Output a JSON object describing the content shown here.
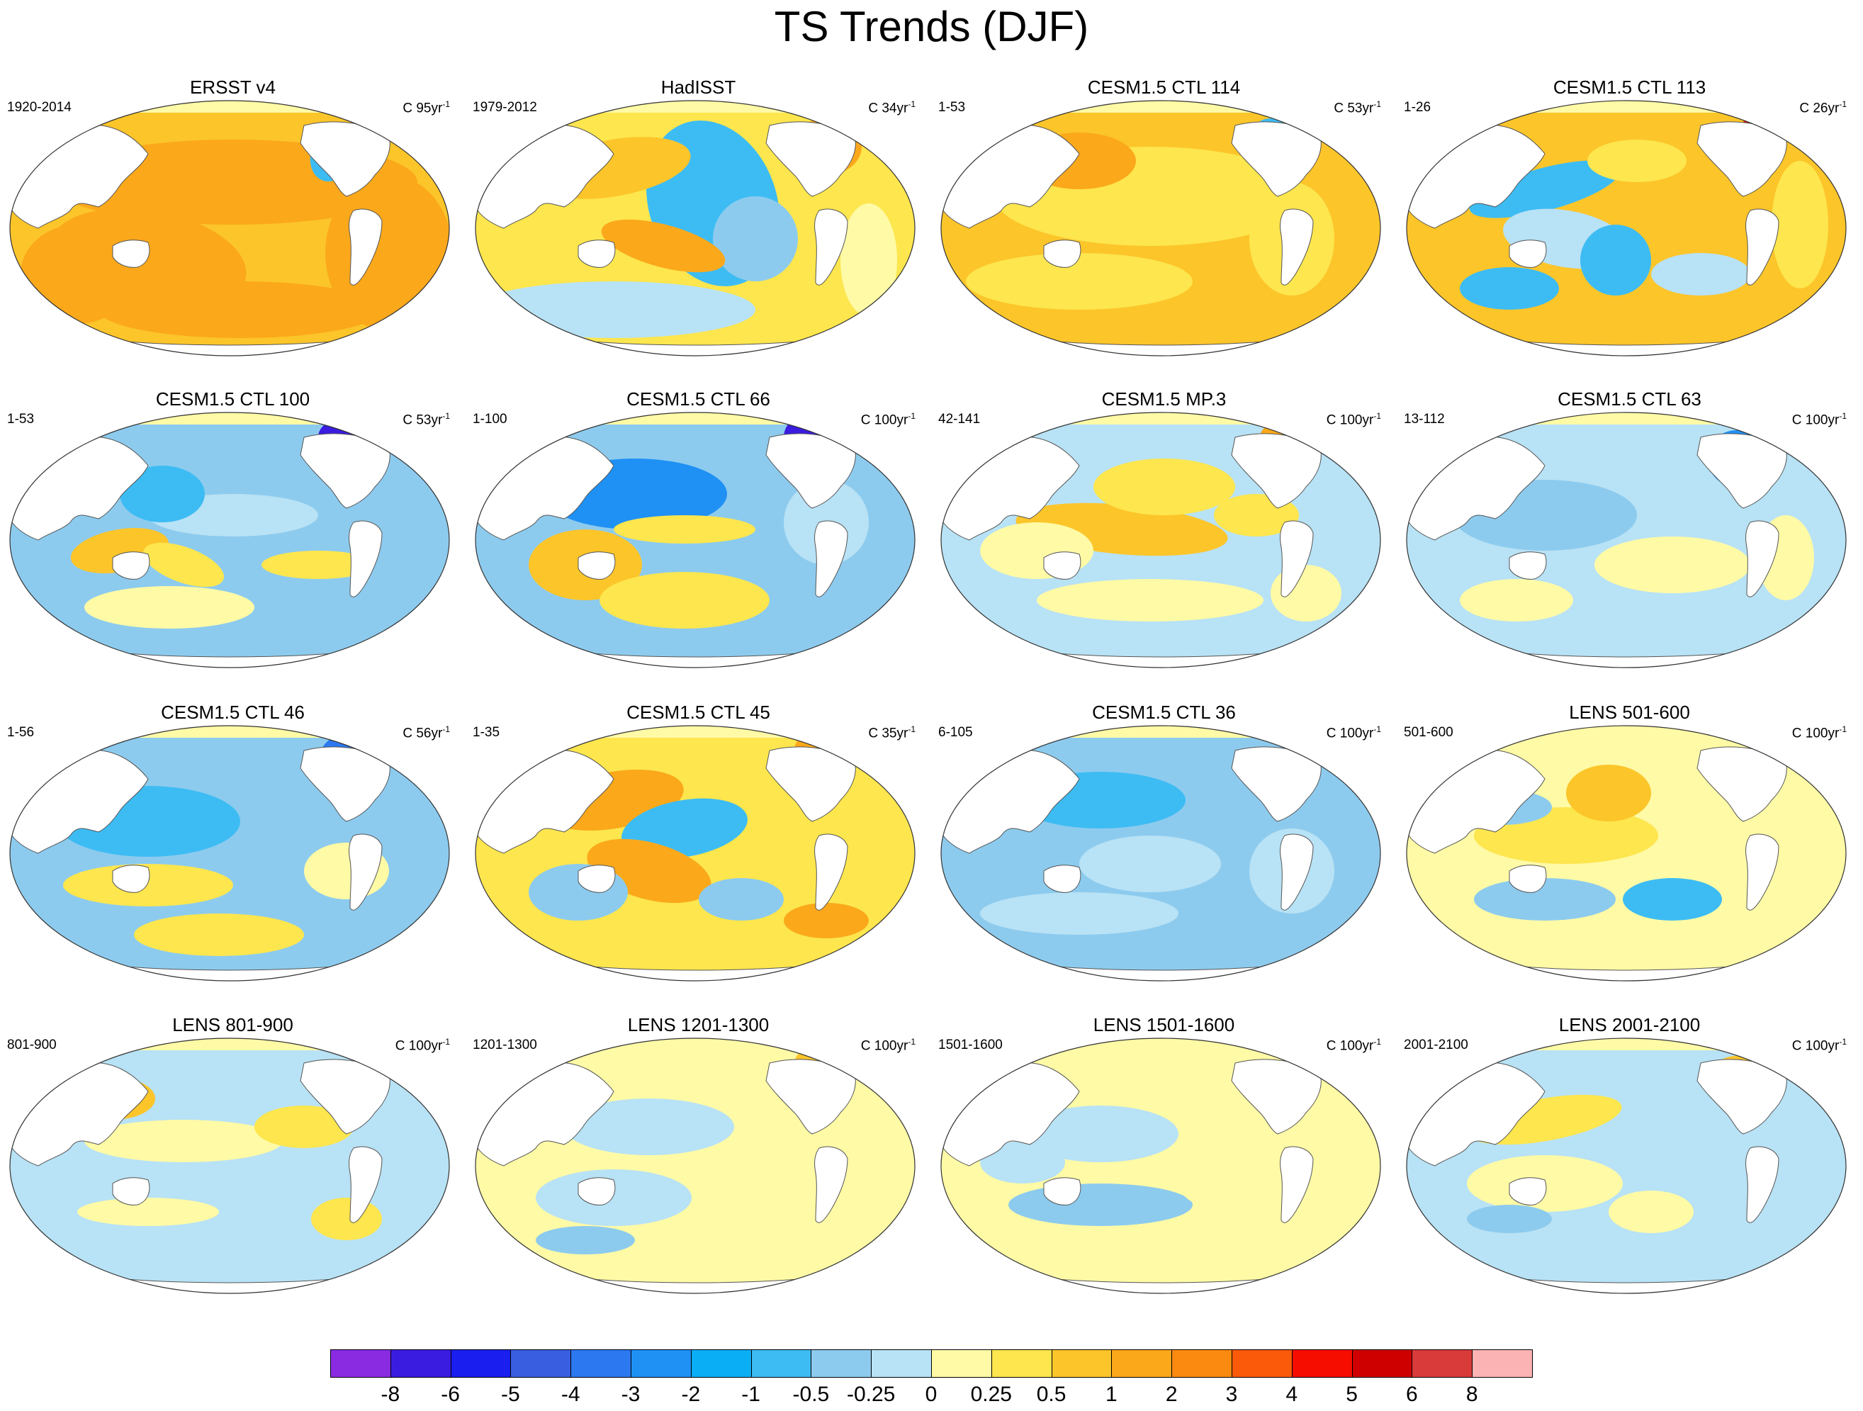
{
  "figure": {
    "title": "TS Trends (DJF)"
  },
  "panels": [
    {
      "title": "ERSST v4",
      "range": "1920-2014",
      "units_prefix": "C 95yr",
      "units_exp": "-1",
      "scheme": "warm-strong"
    },
    {
      "title": "HadISST",
      "range": "1979-2012",
      "units_prefix": "C 34yr",
      "units_exp": "-1",
      "scheme": "lanina-mixed"
    },
    {
      "title": "CESM1.5 CTL 114",
      "range": "1-53",
      "units_prefix": "C 53yr",
      "units_exp": "-1",
      "scheme": "warm-moderate"
    },
    {
      "title": "CESM1.5 CTL 113",
      "range": "1-26",
      "units_prefix": "C 26yr",
      "units_exp": "-1",
      "scheme": "warm-mixed"
    },
    {
      "title": "CESM1.5 CTL 100",
      "range": "1-53",
      "units_prefix": "C 53yr",
      "units_exp": "-1",
      "scheme": "cool-mixed-natl-dark"
    },
    {
      "title": "CESM1.5 CTL 66",
      "range": "1-100",
      "units_prefix": "C 100yr",
      "units_exp": "-1",
      "scheme": "cool-npac-natl-dark"
    },
    {
      "title": "CESM1.5 MP.3",
      "range": "42-141",
      "units_prefix": "C 100yr",
      "units_exp": "-1",
      "scheme": "elnino-mixed"
    },
    {
      "title": "CESM1.5 CTL 63",
      "range": "13-112",
      "units_prefix": "C 100yr",
      "units_exp": "-1",
      "scheme": "cool-light"
    },
    {
      "title": "CESM1.5 CTL 46",
      "range": "1-56",
      "units_prefix": "C 56yr",
      "units_exp": "-1",
      "scheme": "cool-medium"
    },
    {
      "title": "CESM1.5 CTL 45",
      "range": "1-35",
      "units_prefix": "C 35yr",
      "units_exp": "-1",
      "scheme": "warm-mixed-2"
    },
    {
      "title": "CESM1.5 CTL 36",
      "range": "6-105",
      "units_prefix": "C 100yr",
      "units_exp": "-1",
      "scheme": "cool-medium-2"
    },
    {
      "title": "LENS 501-600",
      "range": "501-600",
      "units_prefix": "C 100yr",
      "units_exp": "-1",
      "scheme": "neutral-mixed"
    },
    {
      "title": "LENS 801-900",
      "range": "801-900",
      "units_prefix": "C 100yr",
      "units_exp": "-1",
      "scheme": "neutral-light"
    },
    {
      "title": "LENS 1201-1300",
      "range": "1201-1300",
      "units_prefix": "C 100yr",
      "units_exp": "-1",
      "scheme": "neutral-light-2"
    },
    {
      "title": "LENS 1501-1600",
      "range": "1501-1600",
      "units_prefix": "C 100yr",
      "units_exp": "-1",
      "scheme": "neutral-light-3"
    },
    {
      "title": "LENS 2001-2100",
      "range": "2001-2100",
      "units_prefix": "C 100yr",
      "units_exp": "-1",
      "scheme": "neutral-light-4"
    }
  ],
  "colorbar": {
    "labels": [
      "-8",
      "-6",
      "-5",
      "-4",
      "-3",
      "-2",
      "-1",
      "-0.5",
      "-0.25",
      "0",
      "0.25",
      "0.5",
      "1",
      "2",
      "3",
      "4",
      "5",
      "6",
      "8"
    ],
    "colors": [
      "#8a2be2",
      "#3a1ce0",
      "#1a1ff0",
      "#3a5ee0",
      "#2c78f0",
      "#1f91f5",
      "#0aaef5",
      "#3dbcf3",
      "#8dcbee",
      "#b8e2f5",
      "#fffaa6",
      "#fde64e",
      "#fcc52a",
      "#fba81b",
      "#fb8a10",
      "#fa5a0a",
      "#f70d00",
      "#cf0000",
      "#d93a3a",
      "#fcb3b3"
    ]
  }
}
